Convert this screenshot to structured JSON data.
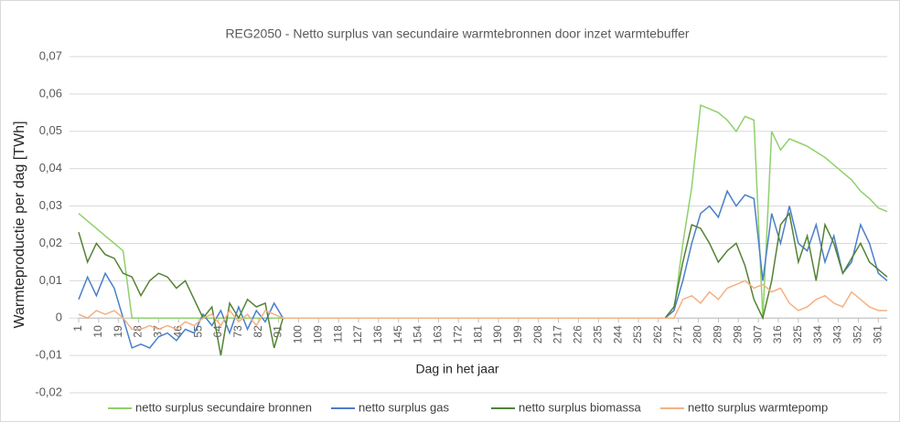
{
  "chart_data": {
    "type": "line",
    "title": "REG2050 - Netto surplus van secundaire warmtebronnen door inzet warmtebuffer",
    "x_label": "Dag in het jaar",
    "y_label": "Warmteproductie per dag [TWh]",
    "x": [
      1,
      5,
      9,
      13,
      17,
      21,
      25,
      29,
      33,
      37,
      41,
      45,
      49,
      53,
      57,
      61,
      65,
      69,
      73,
      77,
      81,
      85,
      89,
      93,
      97,
      101,
      105,
      109,
      113,
      117,
      121,
      125,
      129,
      133,
      137,
      141,
      145,
      149,
      153,
      157,
      161,
      165,
      169,
      173,
      177,
      181,
      185,
      189,
      193,
      197,
      201,
      205,
      209,
      213,
      217,
      221,
      225,
      229,
      233,
      237,
      241,
      245,
      249,
      253,
      257,
      261,
      265,
      269,
      273,
      277,
      281,
      285,
      289,
      293,
      297,
      301,
      305,
      309,
      313,
      317,
      321,
      325,
      329,
      333,
      337,
      341,
      345,
      349,
      353,
      357,
      361,
      365
    ],
    "xlim": [
      1,
      365
    ],
    "xticks": [
      1,
      10,
      19,
      28,
      37,
      46,
      55,
      64,
      73,
      82,
      91,
      100,
      109,
      118,
      127,
      136,
      145,
      154,
      163,
      172,
      181,
      190,
      199,
      208,
      217,
      226,
      235,
      244,
      253,
      262,
      271,
      280,
      289,
      298,
      307,
      316,
      325,
      334,
      343,
      352,
      361
    ],
    "ylim": [
      -0.02,
      0.07
    ],
    "yticks": [
      {
        "value": -0.02,
        "label": "-0,02"
      },
      {
        "value": -0.01,
        "label": "-0,01"
      },
      0,
      {
        "value": 0.01,
        "label": "0,01"
      },
      {
        "value": 0.02,
        "label": "0,02"
      },
      {
        "value": 0.03,
        "label": "0,03"
      },
      {
        "value": 0.04,
        "label": "0,04"
      },
      {
        "value": 0.05,
        "label": "0,05"
      },
      {
        "value": 0.06,
        "label": "0,06"
      },
      {
        "value": 0.07,
        "label": "0,07"
      }
    ],
    "grid": true,
    "legend": "bottom",
    "series": [
      {
        "name": "netto surplus secundaire bronnen",
        "color": "#8fd16a",
        "values": [
          0.028,
          0.026,
          0.024,
          0.022,
          0.02,
          0.018,
          0,
          0,
          0,
          0,
          0,
          0,
          0,
          0,
          0,
          0,
          0,
          0,
          0,
          0,
          0,
          0,
          0,
          0,
          0,
          0,
          0,
          0,
          0,
          0,
          0,
          0,
          0,
          0,
          0,
          0,
          0,
          0,
          0,
          0,
          0,
          0,
          0,
          0,
          0,
          0,
          0,
          0,
          0,
          0,
          0,
          0,
          0,
          0,
          0,
          0,
          0,
          0,
          0,
          0,
          0,
          0,
          0,
          0,
          0,
          0,
          0,
          0.002,
          0.02,
          0.035,
          0.057,
          0.056,
          0.055,
          0.053,
          0.05,
          0.054,
          0.053,
          0,
          0.05,
          0.045,
          0.048,
          0.047,
          0.046,
          0.0445,
          0.043,
          0.041,
          0.039,
          0.037,
          0.034,
          0.032,
          0.0295,
          0.0285
        ]
      },
      {
        "name": "netto surplus gas",
        "color": "#4a7fc9",
        "values": [
          0.005,
          0.011,
          0.006,
          0.012,
          0.008,
          0,
          -0.008,
          -0.007,
          -0.008,
          -0.005,
          -0.004,
          -0.006,
          -0.003,
          -0.004,
          0.001,
          -0.002,
          0.002,
          -0.004,
          0.003,
          -0.003,
          0.002,
          -0.001,
          0.004,
          0,
          0,
          0,
          0,
          0,
          0,
          0,
          0,
          0,
          0,
          0,
          0,
          0,
          0,
          0,
          0,
          0,
          0,
          0,
          0,
          0,
          0,
          0,
          0,
          0,
          0,
          0,
          0,
          0,
          0,
          0,
          0,
          0,
          0,
          0,
          0,
          0,
          0,
          0,
          0,
          0,
          0,
          0,
          0,
          0.002,
          0.01,
          0.02,
          0.028,
          0.03,
          0.027,
          0.034,
          0.03,
          0.033,
          0.032,
          0.01,
          0.028,
          0.02,
          0.03,
          0.02,
          0.018,
          0.025,
          0.015,
          0.022,
          0.012,
          0.015,
          0.025,
          0.02,
          0.012,
          0.01
        ]
      },
      {
        "name": "netto surplus biomassa",
        "color": "#548235",
        "values": [
          0.023,
          0.015,
          0.02,
          0.017,
          0.016,
          0.012,
          0.011,
          0.006,
          0.01,
          0.012,
          0.011,
          0.008,
          0.01,
          0.005,
          0,
          0.003,
          -0.01,
          0.004,
          0,
          0.005,
          0.003,
          0.004,
          -0.008,
          0,
          0,
          0,
          0,
          0,
          0,
          0,
          0,
          0,
          0,
          0,
          0,
          0,
          0,
          0,
          0,
          0,
          0,
          0,
          0,
          0,
          0,
          0,
          0,
          0,
          0,
          0,
          0,
          0,
          0,
          0,
          0,
          0,
          0,
          0,
          0,
          0,
          0,
          0,
          0,
          0,
          0,
          0,
          0,
          0.003,
          0.015,
          0.025,
          0.024,
          0.02,
          0.015,
          0.018,
          0.02,
          0.014,
          0.005,
          0,
          0.01,
          0.025,
          0.028,
          0.015,
          0.022,
          0.01,
          0.025,
          0.02,
          0.012,
          0.016,
          0.02,
          0.015,
          0.013,
          0.011
        ]
      },
      {
        "name": "netto surplus warmtepomp",
        "color": "#f4b183",
        "values": [
          0.001,
          0,
          0.002,
          0.001,
          0.002,
          0,
          -0.003,
          -0.003,
          -0.002,
          -0.003,
          -0.002,
          -0.003,
          -0.001,
          -0.002,
          0,
          0.001,
          -0.002,
          0.002,
          -0.001,
          0.001,
          -0.002,
          0.002,
          0.001,
          0,
          0,
          0,
          0,
          0,
          0,
          0,
          0,
          0,
          0,
          0,
          0,
          0,
          0,
          0,
          0,
          0,
          0,
          0,
          0,
          0,
          0,
          0,
          0,
          0,
          0,
          0,
          0,
          0,
          0,
          0,
          0,
          0,
          0,
          0,
          0,
          0,
          0,
          0,
          0,
          0,
          0,
          0,
          0,
          0,
          0.005,
          0.006,
          0.004,
          0.007,
          0.005,
          0.008,
          0.009,
          0.01,
          0.008,
          0.009,
          0.007,
          0.008,
          0.004,
          0.002,
          0.003,
          0.005,
          0.006,
          0.004,
          0.003,
          0.007,
          0.005,
          0.003,
          0.002,
          0.002
        ]
      }
    ]
  }
}
